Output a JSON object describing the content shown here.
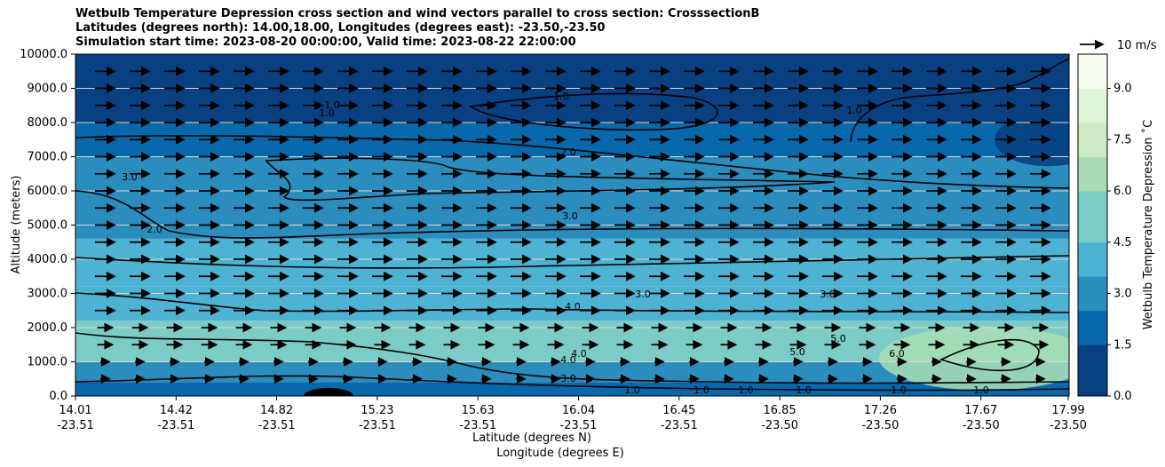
{
  "title_lines": [
    "Wetbulb Temperature Depression cross section and wind vectors parallel to cross section: CrosssectionB",
    "Latitudes (degrees north): 14.00,18.00, Longitudes (degrees east): -23.50,-23.50",
    "Simulation start time: 2023-08-20 00:00:00, Valid time: 2023-08-22 22:00:00"
  ],
  "chart_data": {
    "type": "heatmap",
    "title": "Wetbulb Temperature Depression cross section and wind vectors parallel to cross section: CrosssectionB",
    "ylabel": "Altitude (meters)",
    "xlabel_lat": "Latitude (degrees N)",
    "xlabel_lon": "Longitude (degrees E)",
    "ylim": [
      0,
      10000
    ],
    "y_ticks": [
      "0.0",
      "1000.0",
      "2000.0",
      "3000.0",
      "4000.0",
      "5000.0",
      "6000.0",
      "7000.0",
      "8000.0",
      "9000.0",
      "10000.0"
    ],
    "x_ticks": [
      {
        "lat": "14.01",
        "lon": "-23.51"
      },
      {
        "lat": "14.42",
        "lon": "-23.51"
      },
      {
        "lat": "14.82",
        "lon": "-23.51"
      },
      {
        "lat": "15.23",
        "lon": "-23.51"
      },
      {
        "lat": "15.63",
        "lon": "-23.51"
      },
      {
        "lat": "16.04",
        "lon": "-23.51"
      },
      {
        "lat": "16.45",
        "lon": "-23.51"
      },
      {
        "lat": "16.85",
        "lon": "-23.50"
      },
      {
        "lat": "17.26",
        "lon": "-23.50"
      },
      {
        "lat": "17.67",
        "lon": "-23.50"
      },
      {
        "lat": "17.99",
        "lon": "-23.50"
      }
    ],
    "colorbar": {
      "label": "Wetbulb Temperature Depression $^\\circ$C",
      "label_display": "Wetbulb Temperature Depression ˚C",
      "ticks": [
        "0.0",
        "1.5",
        "3.0",
        "4.5",
        "6.0",
        "7.5",
        "9.0"
      ],
      "range": [
        0,
        10
      ],
      "colormap": "GnBu_r",
      "colors": [
        "#084081",
        "#0868ac",
        "#2b8cbe",
        "#4eb3d3",
        "#7bccc4",
        "#a8ddb5",
        "#ccebc5",
        "#e0f3db",
        "#f7fcf0"
      ]
    },
    "wind_key": {
      "label": "10 m/s"
    },
    "wind_vectors": {
      "direction": "parallel to cross section",
      "dominant": "northward (rightward)"
    },
    "contour_labels": [
      "1.0",
      "1.0",
      "1.0",
      "1.0",
      "2.0",
      "2.0",
      "3.0",
      "3.0",
      "3.0",
      "3.0",
      "4.0",
      "4.0",
      "4.0",
      "3.0",
      "5.0",
      "5.0",
      "6.0",
      "1.0",
      "1.0",
      "1.0",
      "1.0",
      "1.0",
      "1.0"
    ],
    "field_rows": [
      {
        "alt": [
          0,
          400
        ],
        "val": 1.5
      },
      {
        "alt": [
          400,
          1000
        ],
        "val": 3.2
      },
      {
        "alt": [
          1000,
          2200
        ],
        "val": 4.6
      },
      {
        "alt": [
          2200,
          3200
        ],
        "val": 4.2
      },
      {
        "alt": [
          3200,
          4600
        ],
        "val": 3.7
      },
      {
        "alt": [
          4600,
          6000
        ],
        "val": 3.0
      },
      {
        "alt": [
          6000,
          7000
        ],
        "val": 2.5
      },
      {
        "alt": [
          7000,
          8000
        ],
        "val": 1.7
      },
      {
        "alt": [
          8000,
          10000
        ],
        "val": 0.8
      }
    ]
  }
}
